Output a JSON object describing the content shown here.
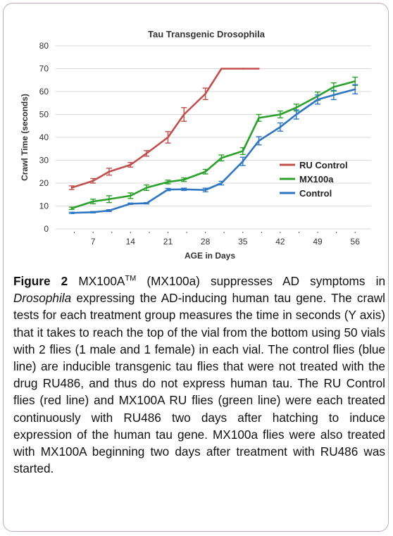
{
  "chart_data": {
    "type": "line",
    "title": "Tau Transgenic Drosophila",
    "xlabel": "AGE in Days",
    "ylabel": "Crawl Time (seconds)",
    "xlim": [
      0,
      59
    ],
    "ylim": [
      0,
      80
    ],
    "xticks": [
      7,
      14,
      21,
      28,
      35,
      42,
      49,
      56
    ],
    "yticks": [
      0,
      10,
      20,
      30,
      40,
      50,
      60,
      70,
      80
    ],
    "grid": true,
    "legend": "right",
    "series": [
      {
        "name": "RU Control",
        "color": "#c0504d",
        "x": [
          3,
          7,
          10,
          14,
          17,
          21,
          24,
          28,
          31,
          35,
          38
        ],
        "y": [
          18,
          21,
          25,
          28,
          33,
          40,
          50,
          59,
          70,
          70,
          70
        ],
        "err": [
          0.8,
          1,
          1.5,
          1,
          1.2,
          2.5,
          3,
          2.5,
          0,
          0,
          0
        ]
      },
      {
        "name": "MX100a",
        "color": "#2ca02c",
        "x": [
          3,
          7,
          10,
          14,
          17,
          21,
          24,
          28,
          31,
          35,
          38,
          42,
          45,
          49,
          52,
          56
        ],
        "y": [
          9,
          12,
          13,
          14.5,
          18,
          20.5,
          21.5,
          25,
          31,
          34,
          48.5,
          50,
          53,
          58,
          62,
          64.5
        ],
        "err": [
          0.5,
          1,
          1.5,
          1.2,
          1.2,
          0.8,
          0.8,
          1,
          1.3,
          1.5,
          1.5,
          1.5,
          1.5,
          1.8,
          1.8,
          1.8
        ]
      },
      {
        "name": "Control",
        "color": "#2e75c2",
        "x": [
          3,
          7,
          10,
          14,
          17,
          21,
          24,
          28,
          31,
          35,
          38,
          42,
          45,
          49,
          52,
          56
        ],
        "y": [
          7,
          7.3,
          8,
          11,
          11.2,
          17.2,
          17.3,
          17,
          20,
          29.5,
          38.5,
          44.5,
          50,
          56.5,
          58.5,
          61
        ],
        "err": [
          0.3,
          0.3,
          0.4,
          0.3,
          0.3,
          0.5,
          0.5,
          0.8,
          0.8,
          1.8,
          1.8,
          1.8,
          2,
          2,
          2,
          2
        ]
      }
    ]
  },
  "caption": {
    "label": "Figure 2",
    "drug": "MX100A",
    "tm": "TM",
    "text_a": " (MX100a) suppresses AD symptoms in ",
    "genus": "Drosophila",
    "text_b": " expressing the AD-inducing human tau gene. The crawl tests for each treatment group measures the time in seconds (Y axis) that it takes to reach the top of the vial from the bottom using 50 vials with 2 flies (1 male and 1 female) in each vial. The control flies (blue line) are inducible transgenic tau flies that were not treated with the drug RU486, and thus do not express human tau. The RU Control flies (red line) and MX100A RU flies (green line) were each treated continuously with RU486 two days after hatching to induce expression of the human tau gene. MX100a flies were also treated with MX100A beginning two days after treatment with RU486 was started."
  }
}
